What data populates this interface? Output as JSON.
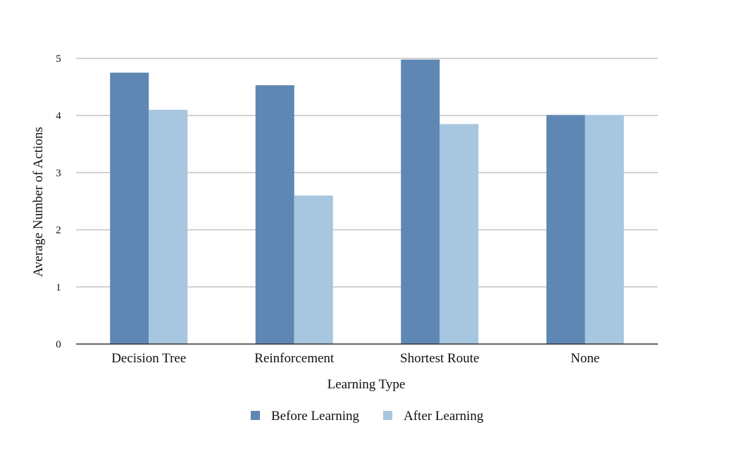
{
  "chart_data": {
    "type": "bar",
    "title": "",
    "xlabel": "Learning Type",
    "ylabel": "Average Number of Actions",
    "categories": [
      "Decision Tree",
      "Reinforcement",
      "Shortest Route",
      "None"
    ],
    "series": [
      {
        "name": "Before Learning",
        "values": [
          4.75,
          4.53,
          4.98,
          4.01
        ],
        "color": "#5f87b3"
      },
      {
        "name": "After Learning",
        "values": [
          4.1,
          2.6,
          3.85,
          4.01
        ],
        "color": "#a7c6df"
      }
    ],
    "ylim": [
      0,
      5
    ],
    "yticks": [
      {
        "value": 0,
        "label": "0"
      },
      {
        "value": 1,
        "label": "1"
      },
      {
        "value": 2,
        "label": "2"
      },
      {
        "value": 3,
        "label": "3"
      },
      {
        "value": 4,
        "label": "4"
      },
      {
        "value": 5,
        "label": "5"
      }
    ],
    "grid": true,
    "legend_position": "bottom-center",
    "colors": {
      "gridline": "#c3c3c3",
      "axis": "#333333",
      "text": "#111111"
    }
  }
}
